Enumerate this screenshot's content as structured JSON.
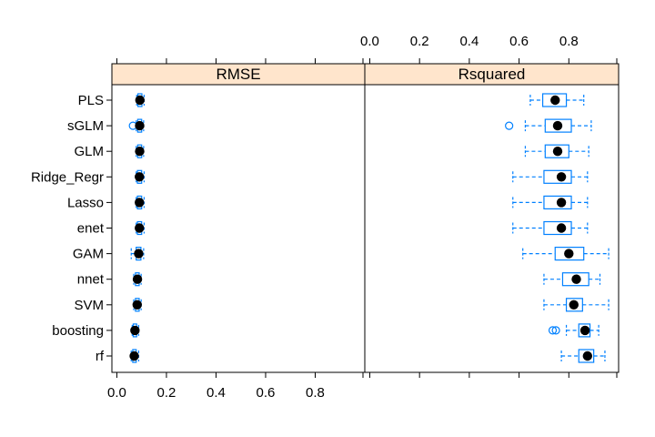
{
  "chart_data": {
    "type": "boxplot",
    "strip_color": "#ffe5cc",
    "box_color": "#0080ff",
    "median_color": "#000000",
    "xlim": [
      -0.02,
      1.0
    ],
    "ticks": [
      0.0,
      0.2,
      0.4,
      0.6,
      0.8
    ],
    "tick_labels": [
      "0.0",
      "0.2",
      "0.4",
      "0.6",
      "0.8"
    ],
    "models": [
      "PLS",
      "sGLM",
      "GLM",
      "Ridge_Regr",
      "Lasso",
      "enet",
      "GAM",
      "nnet",
      "SVM",
      "boosting",
      "rf"
    ],
    "panels": [
      {
        "name": "RMSE",
        "stats": [
          {
            "model": "PLS",
            "lw": 0.08,
            "q1": 0.085,
            "med": 0.093,
            "q3": 0.101,
            "uw": 0.11,
            "out": []
          },
          {
            "model": "sGLM",
            "lw": 0.078,
            "q1": 0.084,
            "med": 0.092,
            "q3": 0.1,
            "uw": 0.108,
            "out": [
              0.065
            ]
          },
          {
            "model": "GLM",
            "lw": 0.078,
            "q1": 0.084,
            "med": 0.092,
            "q3": 0.1,
            "uw": 0.108,
            "out": []
          },
          {
            "model": "Ridge_Regr",
            "lw": 0.078,
            "q1": 0.083,
            "med": 0.091,
            "q3": 0.1,
            "uw": 0.11,
            "out": []
          },
          {
            "model": "Lasso",
            "lw": 0.078,
            "q1": 0.083,
            "med": 0.091,
            "q3": 0.1,
            "uw": 0.11,
            "out": []
          },
          {
            "model": "enet",
            "lw": 0.078,
            "q1": 0.083,
            "med": 0.091,
            "q3": 0.1,
            "uw": 0.11,
            "out": []
          },
          {
            "model": "GAM",
            "lw": 0.058,
            "q1": 0.078,
            "med": 0.088,
            "q3": 0.097,
            "uw": 0.108,
            "out": []
          },
          {
            "model": "nnet",
            "lw": 0.068,
            "q1": 0.075,
            "med": 0.083,
            "q3": 0.09,
            "uw": 0.098,
            "out": []
          },
          {
            "model": "SVM",
            "lw": 0.068,
            "q1": 0.075,
            "med": 0.082,
            "q3": 0.09,
            "uw": 0.098,
            "out": []
          },
          {
            "model": "boosting",
            "lw": 0.062,
            "q1": 0.066,
            "med": 0.073,
            "q3": 0.08,
            "uw": 0.088,
            "out": []
          },
          {
            "model": "rf",
            "lw": 0.058,
            "q1": 0.064,
            "med": 0.07,
            "q3": 0.078,
            "uw": 0.088,
            "out": []
          }
        ]
      },
      {
        "name": "Rsquared",
        "stats": [
          {
            "model": "PLS",
            "lw": 0.645,
            "q1": 0.695,
            "med": 0.745,
            "q3": 0.79,
            "uw": 0.86,
            "out": []
          },
          {
            "model": "sGLM",
            "lw": 0.625,
            "q1": 0.705,
            "med": 0.755,
            "q3": 0.81,
            "uw": 0.89,
            "out": [
              0.56
            ]
          },
          {
            "model": "GLM",
            "lw": 0.625,
            "q1": 0.705,
            "med": 0.755,
            "q3": 0.8,
            "uw": 0.88,
            "out": []
          },
          {
            "model": "Ridge_Regr",
            "lw": 0.575,
            "q1": 0.7,
            "med": 0.77,
            "q3": 0.81,
            "uw": 0.875,
            "out": []
          },
          {
            "model": "Lasso",
            "lw": 0.575,
            "q1": 0.7,
            "med": 0.77,
            "q3": 0.81,
            "uw": 0.875,
            "out": []
          },
          {
            "model": "enet",
            "lw": 0.575,
            "q1": 0.7,
            "med": 0.77,
            "q3": 0.81,
            "uw": 0.875,
            "out": []
          },
          {
            "model": "GAM",
            "lw": 0.615,
            "q1": 0.745,
            "med": 0.8,
            "q3": 0.86,
            "uw": 0.96,
            "out": []
          },
          {
            "model": "nnet",
            "lw": 0.7,
            "q1": 0.775,
            "med": 0.83,
            "q3": 0.88,
            "uw": 0.925,
            "out": []
          },
          {
            "model": "SVM",
            "lw": 0.7,
            "q1": 0.79,
            "med": 0.82,
            "q3": 0.855,
            "uw": 0.96,
            "out": []
          },
          {
            "model": "boosting",
            "lw": 0.79,
            "q1": 0.84,
            "med": 0.865,
            "q3": 0.885,
            "uw": 0.92,
            "out": [
              0.735,
              0.748
            ]
          },
          {
            "model": "rf",
            "lw": 0.77,
            "q1": 0.84,
            "med": 0.875,
            "q3": 0.9,
            "uw": 0.945,
            "out": []
          }
        ]
      }
    ]
  }
}
